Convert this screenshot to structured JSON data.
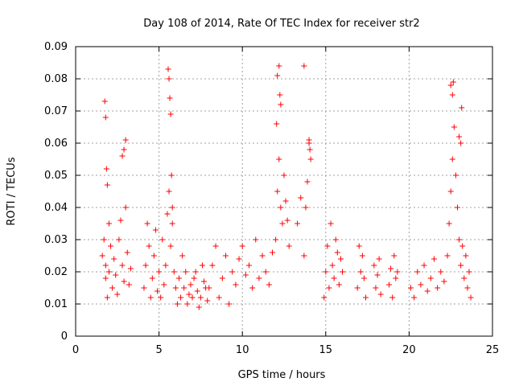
{
  "chart_data": {
    "type": "scatter",
    "title": "Day 108 of 2014, Rate Of TEC Index for receiver str2",
    "xlabel": "GPS time / hours",
    "ylabel": "ROTI / TECUs",
    "xlim": [
      0,
      25
    ],
    "ylim": [
      0,
      0.09
    ],
    "x_ticks": [
      0,
      5,
      10,
      15,
      20,
      25
    ],
    "y_ticks": [
      0,
      0.01,
      0.02,
      0.03,
      0.04,
      0.05,
      0.06,
      0.07,
      0.08,
      0.09
    ],
    "x_tick_labels": [
      "0",
      "5",
      "10",
      "15",
      "20",
      "25"
    ],
    "y_tick_labels": [
      "0",
      "0.01",
      "0.02",
      "0.03",
      "0.04",
      "0.05",
      "0.06",
      "0.07",
      "0.08",
      "0.09"
    ],
    "grid": true,
    "marker": "+",
    "color": "#ff0000",
    "series": [
      {
        "x": [
          1.6,
          1.7,
          1.8,
          1.8,
          1.9,
          2.0,
          2.0,
          2.1,
          2.2,
          2.3,
          2.4,
          2.5,
          2.6,
          2.7,
          2.8,
          2.9,
          3.0,
          3.1,
          3.2,
          3.3,
          1.75,
          1.8,
          1.85,
          1.9,
          2.8,
          2.9,
          3.0,
          4.1,
          4.2,
          4.3,
          4.4,
          4.5,
          4.6,
          4.7,
          4.8,
          4.9,
          5.0,
          5.1,
          5.2,
          5.3,
          5.4,
          5.5,
          5.6,
          5.7,
          5.8,
          5.9,
          6.0,
          6.1,
          6.2,
          6.3,
          6.4,
          6.5,
          6.6,
          6.7,
          6.8,
          6.9,
          7.0,
          7.1,
          7.2,
          7.3,
          7.4,
          7.5,
          7.6,
          7.7,
          7.8,
          7.9,
          5.55,
          5.6,
          5.65,
          5.7,
          5.75,
          5.8,
          8.0,
          8.2,
          8.4,
          8.6,
          8.8,
          9.0,
          9.2,
          9.4,
          9.6,
          9.8,
          10.0,
          10.2,
          10.4,
          10.6,
          10.8,
          11.0,
          11.2,
          11.4,
          11.6,
          11.8,
          12.0,
          12.1,
          12.2,
          12.3,
          12.4,
          12.5,
          12.6,
          12.7,
          12.8,
          12.05,
          12.1,
          12.2,
          12.25,
          12.3,
          13.3,
          13.5,
          13.7,
          13.8,
          13.9,
          14.0,
          14.1,
          13.7,
          14.0,
          14.05,
          14.9,
          15.0,
          15.1,
          15.2,
          15.3,
          15.4,
          15.5,
          15.6,
          15.7,
          15.8,
          15.9,
          16.0,
          16.9,
          17.0,
          17.1,
          17.2,
          17.3,
          17.4,
          17.9,
          18.0,
          18.1,
          18.2,
          18.3,
          18.8,
          18.9,
          19.0,
          19.1,
          19.2,
          19.3,
          20.1,
          20.3,
          20.5,
          20.7,
          20.9,
          21.1,
          21.3,
          21.5,
          21.7,
          21.9,
          22.1,
          22.3,
          22.4,
          22.5,
          22.6,
          22.7,
          22.8,
          22.9,
          23.0,
          23.1,
          23.2,
          23.3,
          23.4,
          23.5,
          23.6,
          23.7,
          22.5,
          22.6,
          22.65,
          23.0,
          23.1,
          23.15
        ],
        "y": [
          0.025,
          0.03,
          0.018,
          0.022,
          0.012,
          0.035,
          0.02,
          0.028,
          0.015,
          0.024,
          0.019,
          0.013,
          0.03,
          0.036,
          0.022,
          0.017,
          0.04,
          0.026,
          0.016,
          0.021,
          0.073,
          0.068,
          0.052,
          0.047,
          0.056,
          0.058,
          0.061,
          0.015,
          0.022,
          0.035,
          0.028,
          0.012,
          0.018,
          0.025,
          0.033,
          0.014,
          0.02,
          0.012,
          0.03,
          0.016,
          0.022,
          0.038,
          0.045,
          0.028,
          0.035,
          0.02,
          0.015,
          0.01,
          0.018,
          0.012,
          0.025,
          0.015,
          0.02,
          0.01,
          0.013,
          0.016,
          0.012,
          0.018,
          0.02,
          0.014,
          0.009,
          0.012,
          0.022,
          0.017,
          0.015,
          0.011,
          0.083,
          0.08,
          0.074,
          0.069,
          0.05,
          0.04,
          0.015,
          0.022,
          0.028,
          0.012,
          0.018,
          0.025,
          0.01,
          0.02,
          0.016,
          0.024,
          0.028,
          0.019,
          0.022,
          0.015,
          0.03,
          0.018,
          0.025,
          0.02,
          0.016,
          0.026,
          0.03,
          0.045,
          0.055,
          0.04,
          0.035,
          0.05,
          0.042,
          0.036,
          0.028,
          0.066,
          0.081,
          0.084,
          0.075,
          0.072,
          0.035,
          0.043,
          0.025,
          0.04,
          0.048,
          0.06,
          0.055,
          0.084,
          0.061,
          0.058,
          0.012,
          0.02,
          0.028,
          0.015,
          0.035,
          0.022,
          0.018,
          0.03,
          0.026,
          0.016,
          0.024,
          0.02,
          0.015,
          0.028,
          0.02,
          0.025,
          0.018,
          0.012,
          0.022,
          0.015,
          0.019,
          0.024,
          0.013,
          0.016,
          0.021,
          0.012,
          0.025,
          0.018,
          0.02,
          0.015,
          0.012,
          0.02,
          0.016,
          0.022,
          0.014,
          0.018,
          0.024,
          0.015,
          0.02,
          0.017,
          0.025,
          0.035,
          0.045,
          0.055,
          0.065,
          0.05,
          0.04,
          0.03,
          0.022,
          0.028,
          0.018,
          0.025,
          0.015,
          0.02,
          0.012,
          0.078,
          0.075,
          0.079,
          0.062,
          0.06,
          0.071
        ]
      }
    ]
  }
}
